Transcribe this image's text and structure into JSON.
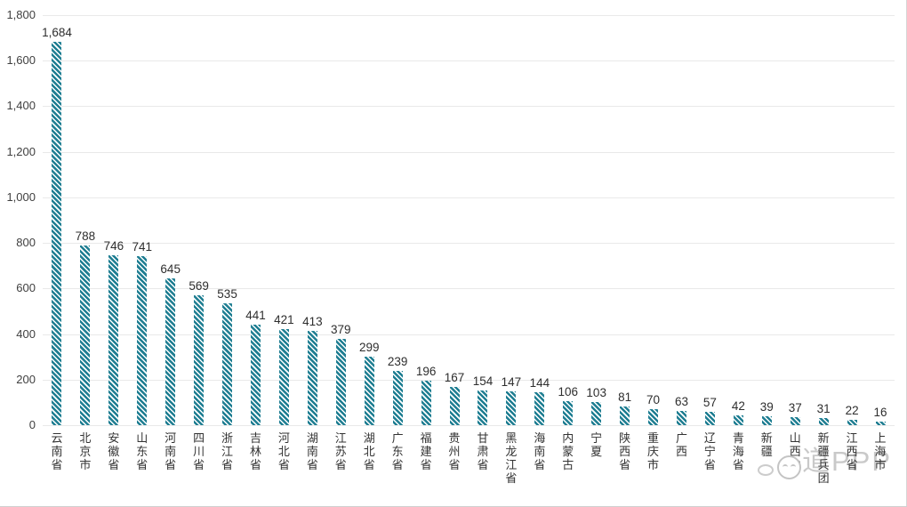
{
  "chart_data": {
    "type": "bar",
    "title": "",
    "xlabel": "",
    "ylabel": "",
    "categories": [
      "云南省",
      "北京市",
      "安徽省",
      "山东省",
      "河南省",
      "四川省",
      "浙江省",
      "吉林省",
      "河北省",
      "湖南省",
      "江苏省",
      "湖北省",
      "广东省",
      "福建省",
      "贵州省",
      "甘肃省",
      "黑龙江省",
      "海南省",
      "内蒙古",
      "宁夏",
      "陕西省",
      "重庆市",
      "广西",
      "辽宁省",
      "青海省",
      "新疆",
      "山西省",
      "新疆兵团",
      "江西省",
      "上海市"
    ],
    "values": [
      1684,
      788,
      746,
      741,
      645,
      569,
      535,
      441,
      421,
      413,
      379,
      299,
      239,
      196,
      167,
      154,
      147,
      144,
      106,
      103,
      81,
      70,
      63,
      57,
      42,
      39,
      37,
      31,
      22,
      16
    ],
    "value_labels": [
      "1,684",
      "788",
      "746",
      "741",
      "645",
      "569",
      "535",
      "441",
      "421",
      "413",
      "379",
      "299",
      "239",
      "196",
      "167",
      "154",
      "147",
      "144",
      "106",
      "103",
      "81",
      "70",
      "63",
      "57",
      "42",
      "39",
      "37",
      "31",
      "22",
      "16"
    ],
    "ylim": [
      0,
      1800
    ],
    "ytick_values": [
      0,
      200,
      400,
      600,
      800,
      1000,
      1200,
      1400,
      1600,
      1800
    ],
    "ytick_labels": [
      "0",
      "200",
      "400",
      "600",
      "800",
      "1,000",
      "1,200",
      "1,400",
      "1,600",
      "1,800"
    ],
    "grid": true,
    "legend_position": "none",
    "bar_style": "diagonal-hatch",
    "colors": {
      "bar": "#1f7e92",
      "bar_stripe_bg": "#ffffff",
      "gridline": "#e9e9e9",
      "tick_text": "#3f3f3f",
      "value_text": "#2e2e2e",
      "category_text": "#333333"
    }
  },
  "watermark": {
    "text": "道PPP",
    "color": "#c9c9c9",
    "face_icon": "smiley-face-icon",
    "bubble_icon": "speech-bubble-icon"
  }
}
